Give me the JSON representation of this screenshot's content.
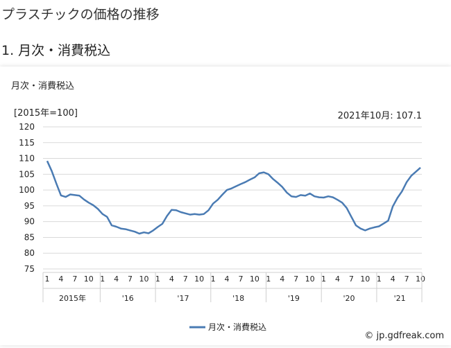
{
  "page": {
    "title": "プラスチックの価格の推移",
    "section_title": "1. 月次・消費税込"
  },
  "chart_data": {
    "type": "line",
    "title": "月次・消費税込",
    "unit_label": "[2015年=100]",
    "annotation": "2021年10月: 107.1",
    "ylim": [
      75,
      120
    ],
    "yticks": [
      75,
      80,
      85,
      90,
      95,
      100,
      105,
      110,
      115,
      120
    ],
    "grid": true,
    "legend_position": "bottom",
    "month_tick_labels": [
      "1",
      "4",
      "7",
      "10"
    ],
    "year_labels": [
      "2015年",
      "'16",
      "'17",
      "'18",
      "'19",
      "'20",
      "'21"
    ],
    "series": [
      {
        "name": "月次・消費税込",
        "color": "#4a7bb3",
        "values": [
          109.2,
          106.0,
          102.0,
          98.3,
          97.8,
          98.6,
          98.4,
          98.2,
          97.0,
          96.0,
          95.2,
          94.0,
          92.4,
          91.5,
          88.8,
          88.4,
          87.8,
          87.6,
          87.2,
          86.8,
          86.2,
          86.6,
          86.3,
          87.2,
          88.3,
          89.3,
          91.8,
          93.7,
          93.6,
          93.0,
          92.6,
          92.2,
          92.4,
          92.2,
          92.4,
          93.6,
          95.7,
          96.9,
          98.5,
          100.0,
          100.5,
          101.2,
          101.9,
          102.5,
          103.3,
          104.0,
          105.3,
          105.6,
          105.0,
          103.5,
          102.3,
          101.0,
          99.2,
          98.0,
          97.8,
          98.4,
          98.2,
          98.9,
          98.0,
          97.7,
          97.6,
          98.0,
          97.7,
          96.9,
          96.0,
          94.3,
          91.5,
          88.8,
          87.8,
          87.2,
          87.8,
          88.2,
          88.5,
          89.4,
          90.3,
          94.8,
          97.5,
          99.6,
          102.5,
          104.5,
          105.8,
          107.1
        ]
      }
    ]
  },
  "footer": {
    "copyright_symbol": "©",
    "source_text": "jp.gdfreak.com"
  }
}
